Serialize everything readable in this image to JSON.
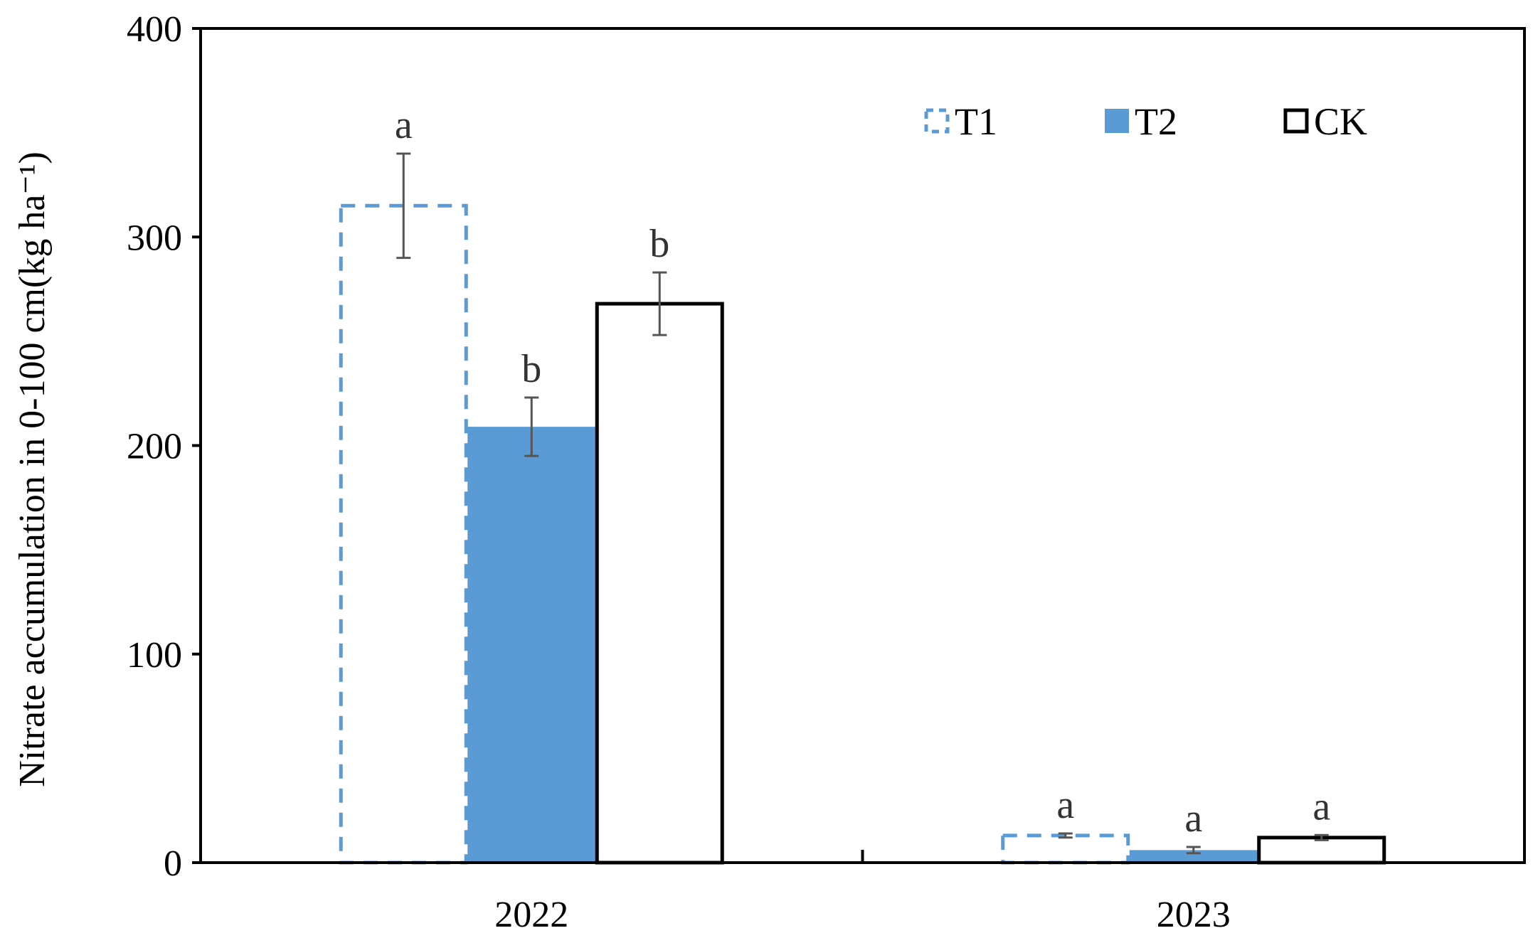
{
  "chart_data": {
    "type": "bar",
    "title": "",
    "xlabel": "",
    "ylabel": "Nitrate accumulation in 0-100 cm(kg ha⁻¹)",
    "ylim": [
      0,
      400
    ],
    "yticks": [
      0,
      100,
      200,
      300,
      400
    ],
    "categories": [
      "2022",
      "2023"
    ],
    "series": [
      {
        "name": "T1",
        "style": "dashed-outline",
        "color": "#5b9bd5",
        "values": [
          315,
          13
        ],
        "errors": [
          25,
          1
        ],
        "labels": [
          "a",
          "a"
        ]
      },
      {
        "name": "T2",
        "style": "filled",
        "color": "#5b9bd5",
        "values": [
          209,
          6
        ],
        "errors": [
          14,
          1.5
        ],
        "labels": [
          "b",
          "a"
        ]
      },
      {
        "name": "CK",
        "style": "outline",
        "color": "#000000",
        "values": [
          268,
          12
        ],
        "errors": [
          15,
          1.2
        ],
        "labels": [
          "b",
          "a"
        ]
      }
    ],
    "grid": false,
    "legend_position": "top-right"
  }
}
